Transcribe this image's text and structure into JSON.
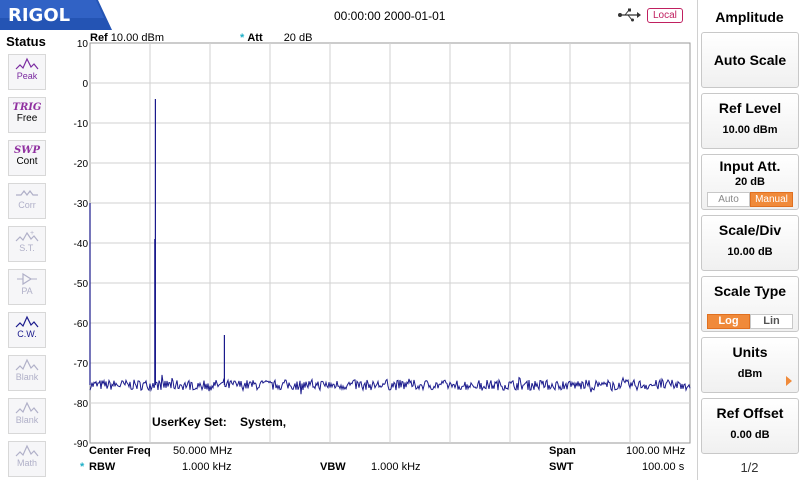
{
  "brand": "RIGOL",
  "header": {
    "datetime": "00:00:00 2000-01-01",
    "local": "Local"
  },
  "status": {
    "title": "Status",
    "buttons": [
      {
        "icon": "peak-icon",
        "label": "Peak",
        "active": true
      },
      {
        "icon": "trig-icon",
        "big": "TRIG",
        "label": "Free"
      },
      {
        "icon": "swp-icon",
        "big": "SWP",
        "label": "Cont"
      },
      {
        "icon": "corr-icon",
        "label": "Corr"
      },
      {
        "icon": "st-icon",
        "label": "S.T."
      },
      {
        "icon": "pa-icon",
        "label": "PA"
      },
      {
        "icon": "cw-icon",
        "label": "C.W.",
        "active": true
      },
      {
        "icon": "blank-icon",
        "label": "Blank"
      },
      {
        "icon": "blank-icon",
        "label": "Blank"
      },
      {
        "icon": "math-icon",
        "label": "Math"
      }
    ]
  },
  "plot": {
    "ref_label": "Ref",
    "ref_value": "10.00 dBm",
    "att_label": "Att",
    "att_value": "20 dB",
    "y_ticks": [
      "10",
      "0",
      "-10",
      "-20",
      "-30",
      "-40",
      "-50",
      "-60",
      "-70",
      "-80",
      "-90"
    ],
    "userkey_label": "UserKey Set:",
    "userkey_value": "System,"
  },
  "chart_data": {
    "type": "line",
    "x_range_mhz": [
      0,
      100
    ],
    "ylim": [
      -90,
      10
    ],
    "y_unit": "dBm",
    "noise_floor_dbm": -75.5,
    "peaks": [
      {
        "x_mhz": 0.0,
        "y_dbm": -30
      },
      {
        "x_mhz": 10.9,
        "y_dbm": -4
      },
      {
        "x_mhz": 10.8,
        "y_dbm": -39
      },
      {
        "x_mhz": 22.4,
        "y_dbm": -63
      }
    ]
  },
  "readouts": {
    "center_label": "Center Freq",
    "center_value": "50.000 MHz",
    "span_label": "Span",
    "span_value": "100.00 MHz",
    "rbw_label": "RBW",
    "rbw_value": "1.000 kHz",
    "vbw_label": "VBW",
    "vbw_value": "1.000 kHz",
    "swt_label": "SWT",
    "swt_value": "100.00 s"
  },
  "menu": {
    "title": "Amplitude",
    "auto_scale": "Auto Scale",
    "ref_level": {
      "label": "Ref Level",
      "value": "10.00 dBm"
    },
    "input_att": {
      "label": "Input Att.",
      "value": "20 dB",
      "opt_auto": "Auto",
      "opt_manual": "Manual"
    },
    "scale_div": {
      "label": "Scale/Div",
      "value": "10.00 dB"
    },
    "scale_type": {
      "label": "Scale Type",
      "opt_log": "Log",
      "opt_lin": "Lin"
    },
    "units": {
      "label": "Units",
      "value": "dBm"
    },
    "ref_offset": {
      "label": "Ref Offset",
      "value": "0.00 dB"
    },
    "page": "1/2"
  },
  "colors": {
    "trace": "#1a1a8c",
    "accent": "#f08a3a",
    "brand": "#2050b0"
  }
}
